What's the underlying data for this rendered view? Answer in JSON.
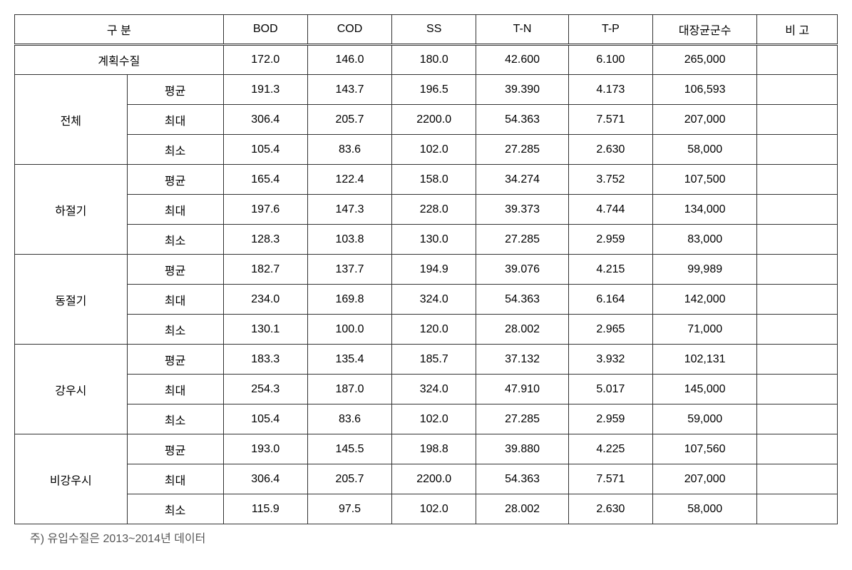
{
  "table": {
    "header": {
      "category": "구  분",
      "bod": "BOD",
      "cod": "COD",
      "ss": "SS",
      "tn": "T-N",
      "tp": "T-P",
      "coliform": "대장균군수",
      "note": "비 고"
    },
    "planned": {
      "label": "계획수질",
      "bod": "172.0",
      "cod": "146.0",
      "ss": "180.0",
      "tn": "42.600",
      "tp": "6.100",
      "coliform": "265,000",
      "note": ""
    },
    "groups": [
      {
        "name": "전체",
        "rows": [
          {
            "label": "평균",
            "bod": "191.3",
            "cod": "143.7",
            "ss": "196.5",
            "tn": "39.390",
            "tp": "4.173",
            "coliform": "106,593",
            "note": ""
          },
          {
            "label": "최대",
            "bod": "306.4",
            "cod": "205.7",
            "ss": "2200.0",
            "tn": "54.363",
            "tp": "7.571",
            "coliform": "207,000",
            "note": ""
          },
          {
            "label": "최소",
            "bod": "105.4",
            "cod": "83.6",
            "ss": "102.0",
            "tn": "27.285",
            "tp": "2.630",
            "coliform": "58,000",
            "note": ""
          }
        ]
      },
      {
        "name": "하절기",
        "rows": [
          {
            "label": "평균",
            "bod": "165.4",
            "cod": "122.4",
            "ss": "158.0",
            "tn": "34.274",
            "tp": "3.752",
            "coliform": "107,500",
            "note": ""
          },
          {
            "label": "최대",
            "bod": "197.6",
            "cod": "147.3",
            "ss": "228.0",
            "tn": "39.373",
            "tp": "4.744",
            "coliform": "134,000",
            "note": ""
          },
          {
            "label": "최소",
            "bod": "128.3",
            "cod": "103.8",
            "ss": "130.0",
            "tn": "27.285",
            "tp": "2.959",
            "coliform": "83,000",
            "note": ""
          }
        ]
      },
      {
        "name": "동절기",
        "rows": [
          {
            "label": "평균",
            "bod": "182.7",
            "cod": "137.7",
            "ss": "194.9",
            "tn": "39.076",
            "tp": "4.215",
            "coliform": "99,989",
            "note": ""
          },
          {
            "label": "최대",
            "bod": "234.0",
            "cod": "169.8",
            "ss": "324.0",
            "tn": "54.363",
            "tp": "6.164",
            "coliform": "142,000",
            "note": ""
          },
          {
            "label": "최소",
            "bod": "130.1",
            "cod": "100.0",
            "ss": "120.0",
            "tn": "28.002",
            "tp": "2.965",
            "coliform": "71,000",
            "note": ""
          }
        ]
      },
      {
        "name": "강우시",
        "rows": [
          {
            "label": "평균",
            "bod": "183.3",
            "cod": "135.4",
            "ss": "185.7",
            "tn": "37.132",
            "tp": "3.932",
            "coliform": "102,131",
            "note": ""
          },
          {
            "label": "최대",
            "bod": "254.3",
            "cod": "187.0",
            "ss": "324.0",
            "tn": "47.910",
            "tp": "5.017",
            "coliform": "145,000",
            "note": ""
          },
          {
            "label": "최소",
            "bod": "105.4",
            "cod": "83.6",
            "ss": "102.0",
            "tn": "27.285",
            "tp": "2.959",
            "coliform": "59,000",
            "note": ""
          }
        ]
      },
      {
        "name": "비강우시",
        "rows": [
          {
            "label": "평균",
            "bod": "193.0",
            "cod": "145.5",
            "ss": "198.8",
            "tn": "39.880",
            "tp": "4.225",
            "coliform": "107,560",
            "note": ""
          },
          {
            "label": "최대",
            "bod": "306.4",
            "cod": "205.7",
            "ss": "2200.0",
            "tn": "54.363",
            "tp": "7.571",
            "coliform": "207,000",
            "note": ""
          },
          {
            "label": "최소",
            "bod": "115.9",
            "cod": "97.5",
            "ss": "102.0",
            "tn": "28.002",
            "tp": "2.630",
            "coliform": "58,000",
            "note": ""
          }
        ]
      }
    ]
  },
  "footnote": "주) 유입수질은 2013~2014년 데이터"
}
